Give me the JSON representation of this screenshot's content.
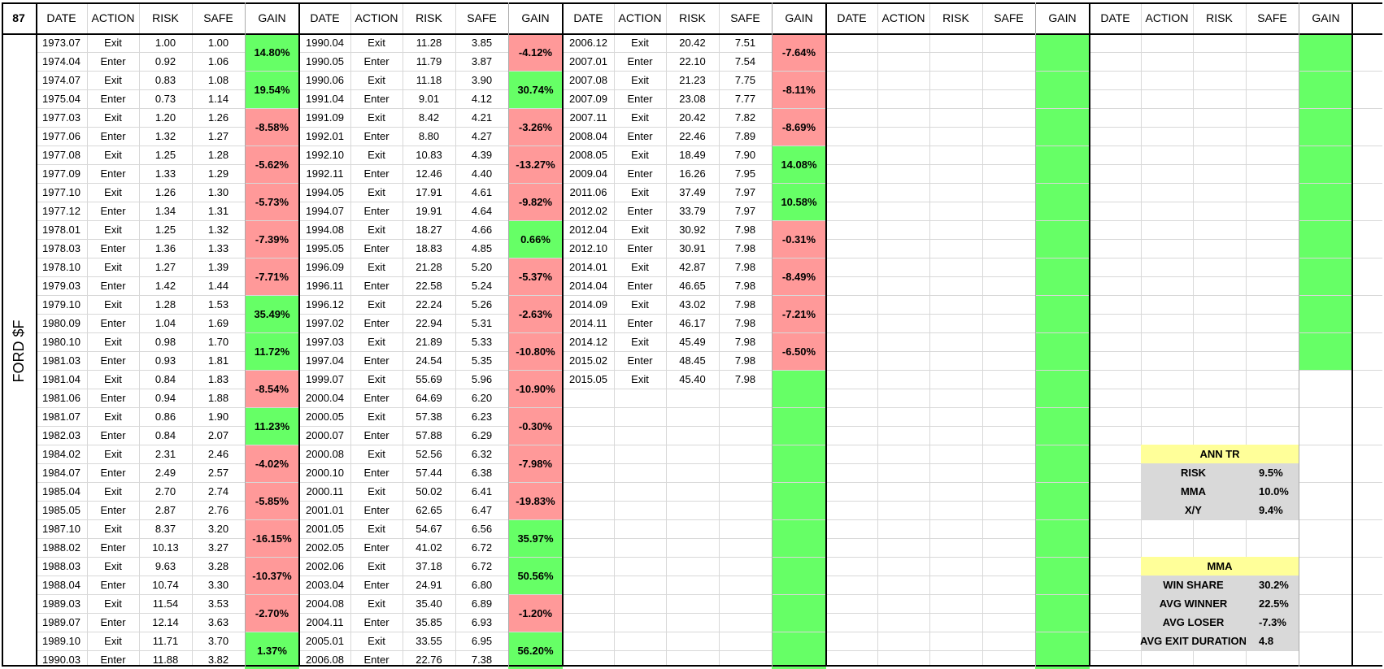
{
  "corner": "87",
  "ticker": "FORD $F",
  "headers": [
    "DATE",
    "ACTION",
    "RISK",
    "SAFE",
    "GAIN"
  ],
  "colors": {
    "green": "#66ff66",
    "red": "#ff9999",
    "yellow": "#ffff99",
    "gray": "#d9d9d9"
  },
  "blocks": [
    {
      "rows": [
        [
          "1973.07",
          "Exit",
          "1.00",
          "1.00"
        ],
        [
          "1974.04",
          "Enter",
          "0.92",
          "1.06"
        ],
        [
          "1974.07",
          "Exit",
          "0.83",
          "1.08"
        ],
        [
          "1975.04",
          "Enter",
          "0.73",
          "1.14"
        ],
        [
          "1977.03",
          "Exit",
          "1.20",
          "1.26"
        ],
        [
          "1977.06",
          "Enter",
          "1.32",
          "1.27"
        ],
        [
          "1977.08",
          "Exit",
          "1.25",
          "1.28"
        ],
        [
          "1977.09",
          "Enter",
          "1.33",
          "1.29"
        ],
        [
          "1977.10",
          "Exit",
          "1.26",
          "1.30"
        ],
        [
          "1977.12",
          "Enter",
          "1.34",
          "1.31"
        ],
        [
          "1978.01",
          "Exit",
          "1.25",
          "1.32"
        ],
        [
          "1978.03",
          "Enter",
          "1.36",
          "1.33"
        ],
        [
          "1978.10",
          "Exit",
          "1.27",
          "1.39"
        ],
        [
          "1979.03",
          "Enter",
          "1.42",
          "1.44"
        ],
        [
          "1979.10",
          "Exit",
          "1.28",
          "1.53"
        ],
        [
          "1980.09",
          "Enter",
          "1.04",
          "1.69"
        ],
        [
          "1980.10",
          "Exit",
          "0.98",
          "1.70"
        ],
        [
          "1981.03",
          "Enter",
          "0.93",
          "1.81"
        ],
        [
          "1981.04",
          "Exit",
          "0.84",
          "1.83"
        ],
        [
          "1981.06",
          "Enter",
          "0.94",
          "1.88"
        ],
        [
          "1981.07",
          "Exit",
          "0.86",
          "1.90"
        ],
        [
          "1982.03",
          "Enter",
          "0.84",
          "2.07"
        ],
        [
          "1984.02",
          "Exit",
          "2.31",
          "2.46"
        ],
        [
          "1984.07",
          "Enter",
          "2.49",
          "2.57"
        ],
        [
          "1985.04",
          "Exit",
          "2.70",
          "2.74"
        ],
        [
          "1985.05",
          "Enter",
          "2.87",
          "2.76"
        ],
        [
          "1987.10",
          "Exit",
          "8.37",
          "3.20"
        ],
        [
          "1988.02",
          "Enter",
          "10.13",
          "3.27"
        ],
        [
          "1988.03",
          "Exit",
          "9.63",
          "3.28"
        ],
        [
          "1988.04",
          "Enter",
          "10.74",
          "3.30"
        ],
        [
          "1989.03",
          "Exit",
          "11.54",
          "3.53"
        ],
        [
          "1989.07",
          "Enter",
          "12.14",
          "3.63"
        ],
        [
          "1989.10",
          "Exit",
          "11.71",
          "3.70"
        ],
        [
          "1990.03",
          "Enter",
          "11.88",
          "3.82"
        ]
      ],
      "gains": [
        {
          "text": "14.80%",
          "color": "green"
        },
        {
          "text": "19.54%",
          "color": "green"
        },
        {
          "text": "-8.58%",
          "color": "red"
        },
        {
          "text": "-5.62%",
          "color": "red"
        },
        {
          "text": "-5.73%",
          "color": "red"
        },
        {
          "text": "-7.39%",
          "color": "red"
        },
        {
          "text": "-7.71%",
          "color": "red"
        },
        {
          "text": "35.49%",
          "color": "green"
        },
        {
          "text": "11.72%",
          "color": "green"
        },
        {
          "text": "-8.54%",
          "color": "red"
        },
        {
          "text": "11.23%",
          "color": "green"
        },
        {
          "text": "-4.02%",
          "color": "red"
        },
        {
          "text": "-5.85%",
          "color": "red"
        },
        {
          "text": "-16.15%",
          "color": "red"
        },
        {
          "text": "-10.37%",
          "color": "red"
        },
        {
          "text": "-2.70%",
          "color": "red"
        },
        {
          "text": "1.37%",
          "color": "green"
        }
      ]
    },
    {
      "rows": [
        [
          "1990.04",
          "Exit",
          "11.28",
          "3.85"
        ],
        [
          "1990.05",
          "Enter",
          "11.79",
          "3.87"
        ],
        [
          "1990.06",
          "Exit",
          "11.18",
          "3.90"
        ],
        [
          "1991.04",
          "Enter",
          "9.01",
          "4.12"
        ],
        [
          "1991.09",
          "Exit",
          "8.42",
          "4.21"
        ],
        [
          "1992.01",
          "Enter",
          "8.80",
          "4.27"
        ],
        [
          "1992.10",
          "Exit",
          "10.83",
          "4.39"
        ],
        [
          "1992.11",
          "Enter",
          "12.46",
          "4.40"
        ],
        [
          "1994.05",
          "Exit",
          "17.91",
          "4.61"
        ],
        [
          "1994.07",
          "Enter",
          "19.91",
          "4.64"
        ],
        [
          "1994.08",
          "Exit",
          "18.27",
          "4.66"
        ],
        [
          "1995.05",
          "Enter",
          "18.83",
          "4.85"
        ],
        [
          "1996.09",
          "Exit",
          "21.28",
          "5.20"
        ],
        [
          "1996.11",
          "Enter",
          "22.58",
          "5.24"
        ],
        [
          "1996.12",
          "Exit",
          "22.24",
          "5.26"
        ],
        [
          "1997.02",
          "Enter",
          "22.94",
          "5.31"
        ],
        [
          "1997.03",
          "Exit",
          "21.89",
          "5.33"
        ],
        [
          "1997.04",
          "Enter",
          "24.54",
          "5.35"
        ],
        [
          "1999.07",
          "Exit",
          "55.69",
          "5.96"
        ],
        [
          "2000.04",
          "Enter",
          "64.69",
          "6.20"
        ],
        [
          "2000.05",
          "Exit",
          "57.38",
          "6.23"
        ],
        [
          "2000.07",
          "Enter",
          "57.88",
          "6.29"
        ],
        [
          "2000.08",
          "Exit",
          "52.56",
          "6.32"
        ],
        [
          "2000.10",
          "Enter",
          "57.44",
          "6.38"
        ],
        [
          "2000.11",
          "Exit",
          "50.02",
          "6.41"
        ],
        [
          "2001.01",
          "Enter",
          "62.65",
          "6.47"
        ],
        [
          "2001.05",
          "Exit",
          "54.67",
          "6.56"
        ],
        [
          "2002.05",
          "Enter",
          "41.02",
          "6.72"
        ],
        [
          "2002.06",
          "Exit",
          "37.18",
          "6.72"
        ],
        [
          "2003.04",
          "Enter",
          "24.91",
          "6.80"
        ],
        [
          "2004.08",
          "Exit",
          "35.40",
          "6.89"
        ],
        [
          "2004.11",
          "Enter",
          "35.85",
          "6.93"
        ],
        [
          "2005.01",
          "Exit",
          "33.55",
          "6.95"
        ],
        [
          "2006.08",
          "Enter",
          "22.76",
          "7.38"
        ]
      ],
      "gains": [
        {
          "text": "-4.12%",
          "color": "red"
        },
        {
          "text": "30.74%",
          "color": "green"
        },
        {
          "text": "-3.26%",
          "color": "red"
        },
        {
          "text": "-13.27%",
          "color": "red"
        },
        {
          "text": "-9.82%",
          "color": "red"
        },
        {
          "text": "0.66%",
          "color": "green"
        },
        {
          "text": "-5.37%",
          "color": "red"
        },
        {
          "text": "-2.63%",
          "color": "red"
        },
        {
          "text": "-10.80%",
          "color": "red"
        },
        {
          "text": "-10.90%",
          "color": "red"
        },
        {
          "text": "-0.30%",
          "color": "red"
        },
        {
          "text": "-7.98%",
          "color": "red"
        },
        {
          "text": "-19.83%",
          "color": "red"
        },
        {
          "text": "35.97%",
          "color": "green"
        },
        {
          "text": "50.56%",
          "color": "green"
        },
        {
          "text": "-1.20%",
          "color": "red"
        },
        {
          "text": "56.20%",
          "color": "green"
        }
      ]
    },
    {
      "rows": [
        [
          "2006.12",
          "Exit",
          "20.42",
          "7.51"
        ],
        [
          "2007.01",
          "Enter",
          "22.10",
          "7.54"
        ],
        [
          "2007.08",
          "Exit",
          "21.23",
          "7.75"
        ],
        [
          "2007.09",
          "Enter",
          "23.08",
          "7.77"
        ],
        [
          "2007.11",
          "Exit",
          "20.42",
          "7.82"
        ],
        [
          "2008.04",
          "Enter",
          "22.46",
          "7.89"
        ],
        [
          "2008.05",
          "Exit",
          "18.49",
          "7.90"
        ],
        [
          "2009.04",
          "Enter",
          "16.26",
          "7.95"
        ],
        [
          "2011.06",
          "Exit",
          "37.49",
          "7.97"
        ],
        [
          "2012.02",
          "Enter",
          "33.79",
          "7.97"
        ],
        [
          "2012.04",
          "Exit",
          "30.92",
          "7.98"
        ],
        [
          "2012.10",
          "Enter",
          "30.91",
          "7.98"
        ],
        [
          "2014.01",
          "Exit",
          "42.87",
          "7.98"
        ],
        [
          "2014.04",
          "Enter",
          "46.65",
          "7.98"
        ],
        [
          "2014.09",
          "Exit",
          "43.02",
          "7.98"
        ],
        [
          "2014.11",
          "Enter",
          "46.17",
          "7.98"
        ],
        [
          "2014.12",
          "Exit",
          "45.49",
          "7.98"
        ],
        [
          "2015.02",
          "Enter",
          "48.45",
          "7.98"
        ],
        [
          "2015.05",
          "Exit",
          "45.40",
          "7.98"
        ]
      ],
      "gains": [
        {
          "text": "-7.64%",
          "color": "red"
        },
        {
          "text": "-8.11%",
          "color": "red"
        },
        {
          "text": "-8.69%",
          "color": "red"
        },
        {
          "text": "14.08%",
          "color": "green"
        },
        {
          "text": "10.58%",
          "color": "green"
        },
        {
          "text": "-0.31%",
          "color": "red"
        },
        {
          "text": "-8.49%",
          "color": "red"
        },
        {
          "text": "-7.21%",
          "color": "red"
        },
        {
          "text": "-6.50%",
          "color": "red"
        },
        {
          "text": "",
          "color": "green"
        },
        {
          "text": "",
          "color": "green"
        },
        {
          "text": "",
          "color": "green"
        },
        {
          "text": "",
          "color": "green"
        },
        {
          "text": "",
          "color": "green"
        },
        {
          "text": "",
          "color": "green"
        },
        {
          "text": "",
          "color": "green"
        },
        {
          "text": "",
          "color": "green"
        }
      ]
    },
    {
      "rows": [],
      "gains": [
        {
          "text": "",
          "color": "green"
        },
        {
          "text": "",
          "color": "green"
        },
        {
          "text": "",
          "color": "green"
        },
        {
          "text": "",
          "color": "green"
        },
        {
          "text": "",
          "color": "green"
        },
        {
          "text": "",
          "color": "green"
        },
        {
          "text": "",
          "color": "green"
        },
        {
          "text": "",
          "color": "green"
        },
        {
          "text": "",
          "color": "green"
        },
        {
          "text": "",
          "color": "green"
        },
        {
          "text": "",
          "color": "green"
        },
        {
          "text": "",
          "color": "green"
        },
        {
          "text": "",
          "color": "green"
        },
        {
          "text": "",
          "color": "green"
        },
        {
          "text": "",
          "color": "green"
        },
        {
          "text": "",
          "color": "green"
        },
        {
          "text": "",
          "color": "green"
        }
      ]
    },
    {
      "rows": [],
      "gains": [
        {
          "text": "",
          "color": "green"
        },
        {
          "text": "",
          "color": "green"
        },
        {
          "text": "",
          "color": "green"
        },
        {
          "text": "",
          "color": "green"
        },
        {
          "text": "",
          "color": "green"
        },
        {
          "text": "",
          "color": "green"
        },
        {
          "text": "",
          "color": "green"
        },
        {
          "text": "",
          "color": "green"
        },
        {
          "text": "",
          "color": "green"
        },
        {
          "text": "",
          "color": "white"
        },
        {
          "text": "",
          "color": "white"
        },
        {
          "text": "",
          "color": "white"
        },
        {
          "text": "",
          "color": "white"
        },
        {
          "text": "",
          "color": "white"
        },
        {
          "text": "",
          "color": "white"
        },
        {
          "text": "",
          "color": "white"
        },
        {
          "text": "",
          "color": "white"
        }
      ]
    }
  ],
  "summary": {
    "ann_tr": {
      "title": "ANN TR",
      "rows": [
        [
          "RISK",
          "9.5%"
        ],
        [
          "MMA",
          "10.0%"
        ],
        [
          "X/Y",
          "9.4%"
        ]
      ]
    },
    "mma": {
      "title": "MMA",
      "rows": [
        [
          "WIN SHARE",
          "30.2%"
        ],
        [
          "AVG WINNER",
          "22.5%"
        ],
        [
          "AVG LOSER",
          "-7.3%"
        ],
        [
          "AVG EXIT DURATION",
          "4.8"
        ]
      ]
    }
  }
}
